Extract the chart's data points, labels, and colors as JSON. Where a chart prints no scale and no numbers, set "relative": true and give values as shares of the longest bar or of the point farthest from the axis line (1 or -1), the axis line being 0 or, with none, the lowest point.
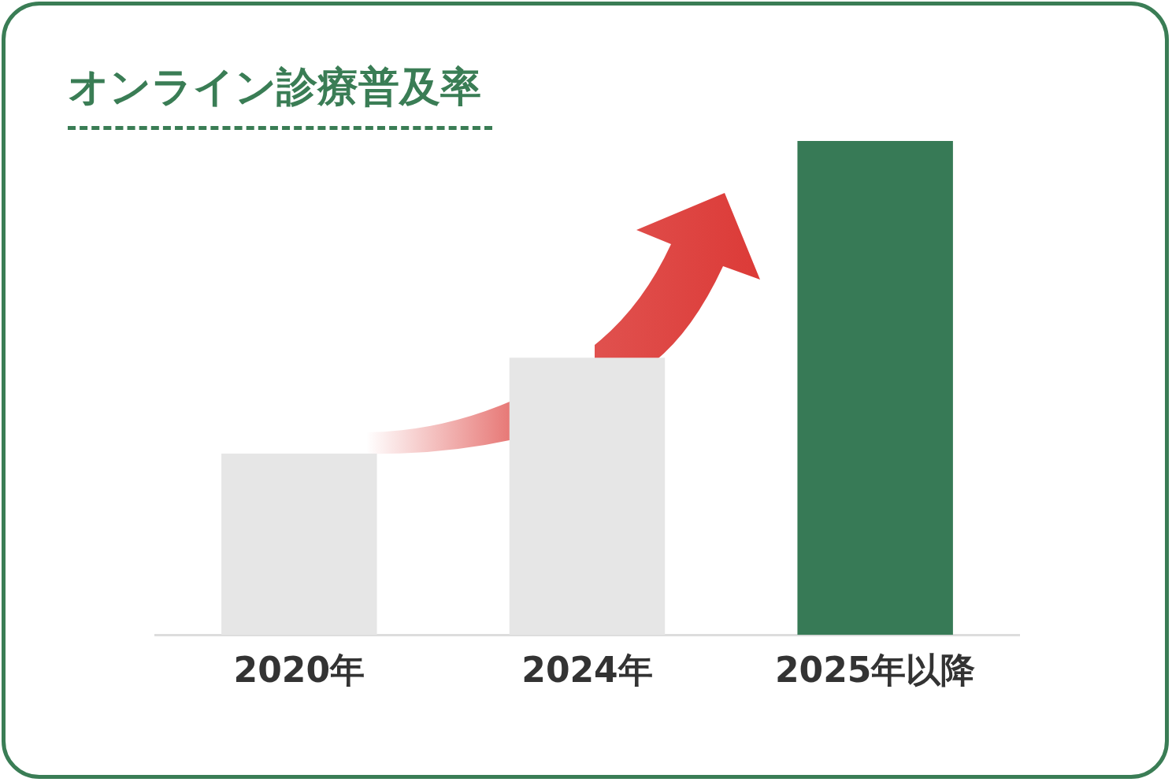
{
  "chart_data": {
    "type": "bar",
    "title": "オンライン診療普及率",
    "categories": [
      "2020年",
      "2024年",
      "2025年以降"
    ],
    "values": [
      0.367,
      0.561,
      1
    ],
    "colors": [
      "#e6e6e6",
      "#e6e6e6",
      "#377a56"
    ],
    "relative": true
  }
}
